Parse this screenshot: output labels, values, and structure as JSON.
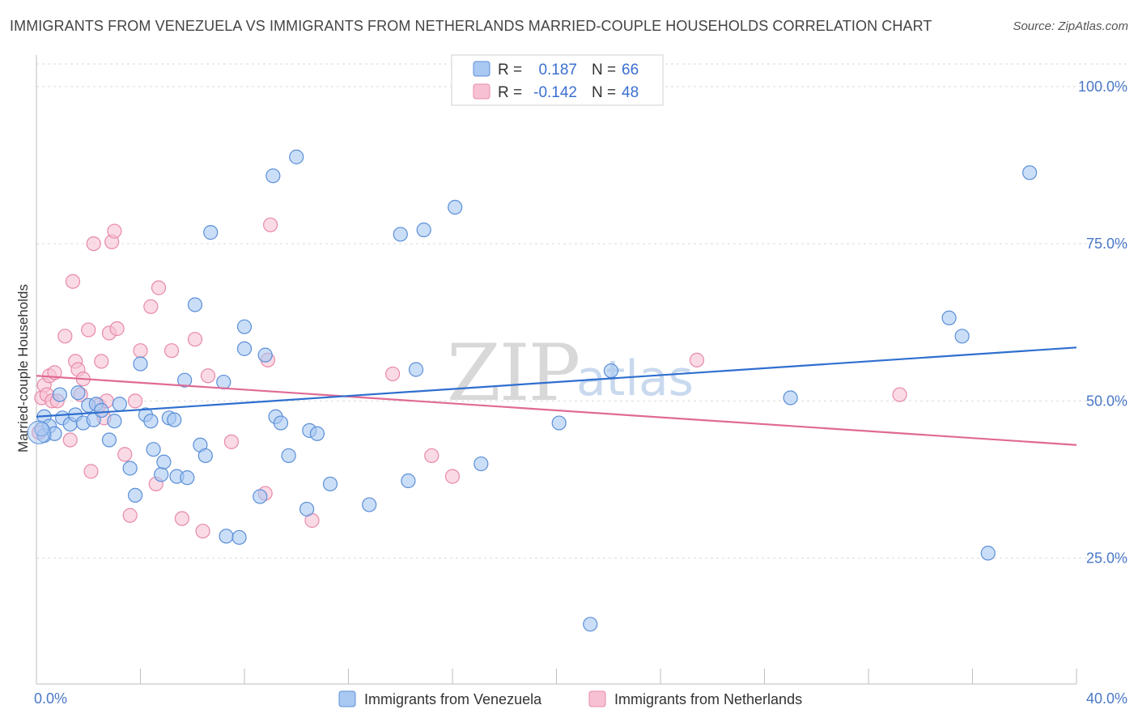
{
  "header": {
    "title": "IMMIGRANTS FROM VENEZUELA VS IMMIGRANTS FROM NETHERLANDS MARRIED-COUPLE HOUSEHOLDS CORRELATION CHART",
    "source": "Source: ZipAtlas.com"
  },
  "legend": {
    "rows": [
      {
        "r_label": "R =",
        "r_value": "0.187",
        "n_label": "N =",
        "n_value": "66"
      },
      {
        "r_label": "R =",
        "r_value": "-0.142",
        "n_label": "N =",
        "n_value": "48"
      }
    ]
  },
  "watermark": {
    "zip": "ZIP",
    "atlas": "atlas"
  },
  "colors": {
    "venezuela_fill": "#a9c8f2",
    "venezuela_stroke": "#5a8fd8",
    "venezuela_line": "#2f6fcf",
    "netherlands_fill": "#f7c1d3",
    "netherlands_stroke": "#e889a8",
    "netherlands_line": "#e06a94",
    "grid": "#d9d9d9",
    "tick_label": "#4a78c8"
  },
  "chart_data": {
    "type": "scatter",
    "title": "IMMIGRANTS FROM VENEZUELA VS IMMIGRANTS FROM NETHERLANDS MARRIED-COUPLE HOUSEHOLDS CORRELATION CHART",
    "xlabel": "",
    "ylabel": "Married-couple Households",
    "xlim": [
      0,
      40
    ],
    "ylim": [
      5,
      105
    ],
    "x_tick_labels": [
      "0.0%",
      "40.0%"
    ],
    "y_ticks": [
      25,
      50,
      75,
      100
    ],
    "y_tick_labels": [
      "25.0%",
      "50.0%",
      "75.0%",
      "100.0%"
    ],
    "grid": true,
    "legend_position": "top-center",
    "series": [
      {
        "name": "Immigrants from Venezuela",
        "r": 0.187,
        "n": 66,
        "trend": {
          "x": [
            0,
            40
          ],
          "y": [
            47.5,
            58.5
          ]
        },
        "points": [
          [
            0.3,
            44.5
          ],
          [
            0.3,
            47.5
          ],
          [
            0.5,
            46
          ],
          [
            0.7,
            44.8
          ],
          [
            0.9,
            51
          ],
          [
            1.0,
            47.3
          ],
          [
            1.3,
            46.3
          ],
          [
            1.5,
            47.8
          ],
          [
            1.6,
            51.3
          ],
          [
            1.8,
            46.5
          ],
          [
            2.0,
            49.3
          ],
          [
            2.2,
            47.0
          ],
          [
            2.3,
            49.5
          ],
          [
            2.5,
            48.5
          ],
          [
            2.8,
            43.8
          ],
          [
            3.0,
            46.8
          ],
          [
            3.2,
            49.5
          ],
          [
            3.6,
            39.3
          ],
          [
            3.8,
            35
          ],
          [
            4.0,
            55.9
          ],
          [
            4.2,
            47.8
          ],
          [
            4.4,
            46.8
          ],
          [
            4.5,
            42.3
          ],
          [
            4.8,
            38.3
          ],
          [
            4.9,
            40.3
          ],
          [
            5.1,
            47.3
          ],
          [
            5.3,
            47
          ],
          [
            5.4,
            38
          ],
          [
            5.7,
            53.3
          ],
          [
            5.8,
            37.8
          ],
          [
            6.1,
            65.3
          ],
          [
            6.3,
            43
          ],
          [
            6.5,
            41.3
          ],
          [
            6.7,
            76.8
          ],
          [
            7.2,
            53
          ],
          [
            7.3,
            28.5
          ],
          [
            7.8,
            28.3
          ],
          [
            8.0,
            61.8
          ],
          [
            8.0,
            58.3
          ],
          [
            8.6,
            34.8
          ],
          [
            8.8,
            57.3
          ],
          [
            9.1,
            85.8
          ],
          [
            9.2,
            47.5
          ],
          [
            9.4,
            46.5
          ],
          [
            9.7,
            41.3
          ],
          [
            10.0,
            88.8
          ],
          [
            10.4,
            32.8
          ],
          [
            10.5,
            45.3
          ],
          [
            10.8,
            44.8
          ],
          [
            11.3,
            36.8
          ],
          [
            12.8,
            33.5
          ],
          [
            14.0,
            76.5
          ],
          [
            14.3,
            37.3
          ],
          [
            14.6,
            55
          ],
          [
            14.9,
            77.2
          ],
          [
            16.1,
            80.8
          ],
          [
            17.1,
            40
          ],
          [
            20.1,
            46.5
          ],
          [
            21.3,
            14.5
          ],
          [
            22.1,
            54.8
          ],
          [
            29.0,
            50.5
          ],
          [
            35.1,
            63.2
          ],
          [
            35.6,
            60.3
          ],
          [
            36.6,
            25.8
          ],
          [
            38.2,
            86.3
          ],
          [
            0.2,
            45.5
          ]
        ]
      },
      {
        "name": "Immigrants from Netherlands",
        "r": -0.142,
        "n": 48,
        "trend": {
          "x": [
            0,
            40
          ],
          "y": [
            54,
            43
          ]
        },
        "points": [
          [
            0.1,
            45
          ],
          [
            0.2,
            50.5
          ],
          [
            0.3,
            52.5
          ],
          [
            0.4,
            51
          ],
          [
            0.5,
            54
          ],
          [
            0.6,
            50
          ],
          [
            0.7,
            54.5
          ],
          [
            0.8,
            50
          ],
          [
            1.1,
            60.3
          ],
          [
            1.3,
            43.8
          ],
          [
            1.4,
            69
          ],
          [
            1.5,
            56.3
          ],
          [
            1.6,
            55
          ],
          [
            1.7,
            51
          ],
          [
            1.8,
            53.5
          ],
          [
            2.0,
            61.3
          ],
          [
            2.1,
            38.8
          ],
          [
            2.2,
            75
          ],
          [
            2.4,
            49.3
          ],
          [
            2.5,
            56.3
          ],
          [
            2.6,
            47.3
          ],
          [
            2.7,
            50
          ],
          [
            2.8,
            60.8
          ],
          [
            2.9,
            75.3
          ],
          [
            3.0,
            77
          ],
          [
            3.1,
            61.5
          ],
          [
            3.4,
            41.5
          ],
          [
            3.6,
            31.8
          ],
          [
            3.8,
            50
          ],
          [
            4.0,
            58
          ],
          [
            4.4,
            65
          ],
          [
            4.6,
            36.8
          ],
          [
            4.7,
            68
          ],
          [
            5.2,
            58
          ],
          [
            5.6,
            31.3
          ],
          [
            6.1,
            59.8
          ],
          [
            6.4,
            29.3
          ],
          [
            6.6,
            54
          ],
          [
            7.5,
            43.5
          ],
          [
            8.8,
            35.3
          ],
          [
            8.9,
            56.5
          ],
          [
            9.0,
            78
          ],
          [
            10.6,
            31
          ],
          [
            13.7,
            54.3
          ],
          [
            15.2,
            41.3
          ],
          [
            16.0,
            38
          ],
          [
            25.4,
            56.5
          ],
          [
            33.2,
            51
          ]
        ]
      }
    ]
  }
}
